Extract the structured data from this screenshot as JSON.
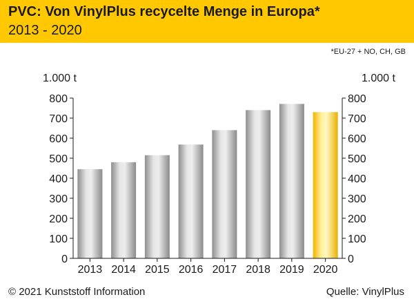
{
  "header": {
    "title": "PVC: Von VinylPlus recycelte Menge in Europa*",
    "subtitle": "2013 - 2020"
  },
  "footnote": "*EU-27 + NO, CH, GB",
  "footer": {
    "copyright": "© 2021 Kunststoff Information",
    "source": "Quelle: VinylPlus"
  },
  "colors": {
    "header": "#ffc800",
    "bar": "#b8b8b8",
    "bar_highlight": "#ffd400"
  },
  "chart_data": {
    "type": "bar",
    "title": "PVC: Von VinylPlus recycelte Menge in Europa*",
    "subtitle": "2013 - 2020",
    "unit_left": "1.000 t",
    "unit_right": "1.000 t",
    "categories": [
      "2013",
      "2014",
      "2015",
      "2016",
      "2017",
      "2018",
      "2019",
      "2020"
    ],
    "values": [
      445,
      480,
      515,
      568,
      640,
      740,
      771,
      730
    ],
    "highlight_category": "2020",
    "ylim": [
      0,
      800
    ],
    "yticks": [
      0,
      100,
      200,
      300,
      400,
      500,
      600,
      700,
      800
    ],
    "grid": false,
    "legend": "none"
  }
}
